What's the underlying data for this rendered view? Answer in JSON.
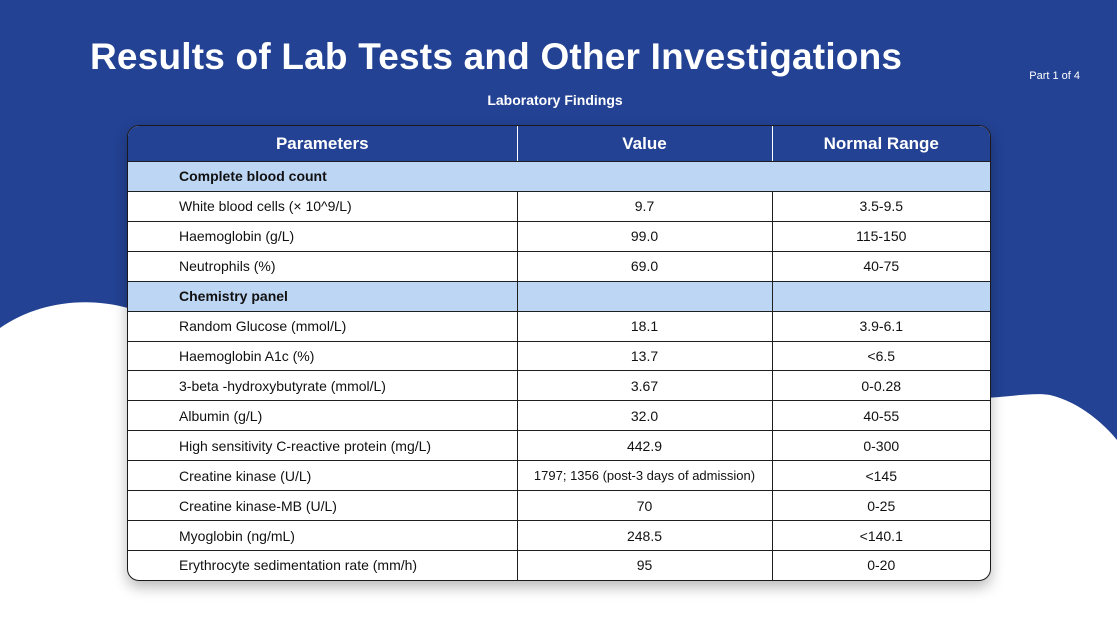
{
  "page": {
    "title": "Results of Lab Tests and Other Investigations",
    "part_indicator": "Part 1 of 4",
    "subtitle": "Laboratory Findings"
  },
  "colors": {
    "background": "#234293",
    "header_bg": "#234293",
    "section_bg": "#bdd6f4",
    "wave": "#ffffff"
  },
  "table": {
    "columns": [
      "Parameters",
      "Value",
      "Normal Range"
    ],
    "sections": [
      {
        "name": "Complete blood count",
        "rows": [
          {
            "parameter": "White blood cells (× 10^9/L)",
            "value": "9.7",
            "range": "3.5-9.5"
          },
          {
            "parameter": "Haemoglobin (g/L)",
            "value": "99.0",
            "range": "115-150"
          },
          {
            "parameter": "Neutrophils (%)",
            "value": "69.0",
            "range": "40-75"
          }
        ]
      },
      {
        "name": "Chemistry panel",
        "rows": [
          {
            "parameter": "Random Glucose (mmol/L)",
            "value": "18.1",
            "range": "3.9-6.1"
          },
          {
            "parameter": "Haemoglobin A1c (%)",
            "value": "13.7",
            "range": "<6.5"
          },
          {
            "parameter": "3-beta -hydroxybutyrate (mmol/L)",
            "value": "3.67",
            "range": "0-0.28"
          },
          {
            "parameter": "Albumin (g/L)",
            "value": "32.0",
            "range": "40-55"
          },
          {
            "parameter": "High sensitivity C-reactive protein (mg/L)",
            "value": "442.9",
            "range": "0-300"
          },
          {
            "parameter": "Creatine kinase (U/L)",
            "value": "1797; 1356 (post-3 days of admission)",
            "range": "<145"
          },
          {
            "parameter": "Creatine kinase-MB (U/L)",
            "value": "70",
            "range": "0-25"
          },
          {
            "parameter": "Myoglobin (ng/mL)",
            "value": "248.5",
            "range": "<140.1"
          },
          {
            "parameter": "Erythrocyte sedimentation rate (mm/h)",
            "value": "95",
            "range": "0-20"
          }
        ]
      }
    ]
  }
}
